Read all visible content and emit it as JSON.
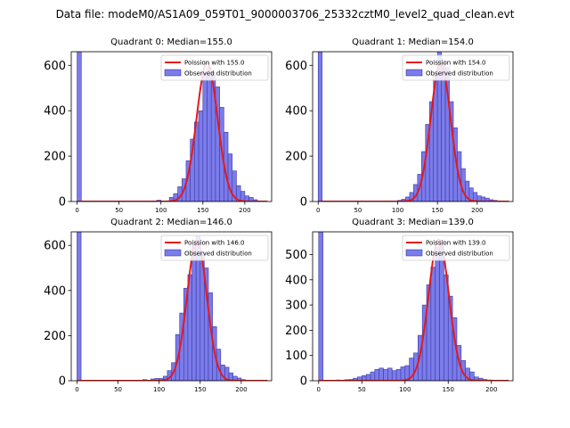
{
  "chart_data": {
    "type": "bar",
    "title": "Data file: modeM0/AS1A09_059T01_9000003706_25332cztM0_level2_quad_clean.evt",
    "colors": {
      "bar_fill": "#7b7bea",
      "bar_edge": "#3a3aa8",
      "poisson_line": "#e41a1c"
    },
    "panels": [
      {
        "title": "Quadrant 0: Median=155.0",
        "xlim": [
          -7,
          232
        ],
        "ylim": [
          0,
          660
        ],
        "xticks": [
          0,
          50,
          100,
          150,
          200
        ],
        "yticks": [
          0,
          200,
          400,
          600
        ],
        "legend": {
          "position": "top-right",
          "line_label": "Poission with 155.0",
          "bar_label": "Observed distribution"
        },
        "poisson_mean": 155.0,
        "poisson_peak": 610,
        "bin_width": 5,
        "bins": [
          0,
          95,
          110,
          115,
          120,
          125,
          130,
          135,
          140,
          145,
          150,
          155,
          160,
          165,
          170,
          175,
          180,
          185,
          190,
          195,
          200,
          205,
          210,
          215
        ],
        "counts": [
          660,
          6,
          18,
          35,
          65,
          100,
          180,
          275,
          350,
          400,
          565,
          590,
          570,
          505,
          415,
          305,
          210,
          135,
          70,
          45,
          25,
          18,
          8,
          3
        ]
      },
      {
        "title": "Quadrant 1: Median=154.0",
        "xlim": [
          -7,
          245
        ],
        "ylim": [
          0,
          660
        ],
        "xticks": [
          0,
          50,
          100,
          150,
          200
        ],
        "yticks": [
          0,
          200,
          400,
          600
        ],
        "legend": {
          "position": "top-right",
          "line_label": "Poission with 154.0",
          "bar_label": "Observed distribution"
        },
        "poisson_mean": 154.0,
        "poisson_peak": 610,
        "bin_width": 5,
        "bins": [
          0,
          100,
          105,
          110,
          115,
          120,
          125,
          130,
          135,
          140,
          145,
          150,
          155,
          160,
          165,
          170,
          175,
          180,
          185,
          190,
          195,
          200,
          205,
          210,
          215,
          220,
          225
        ],
        "counts": [
          660,
          5,
          10,
          20,
          40,
          75,
          120,
          220,
          340,
          440,
          560,
          660,
          610,
          590,
          440,
          325,
          220,
          145,
          90,
          60,
          40,
          25,
          20,
          15,
          8,
          5,
          3
        ]
      },
      {
        "title": "Quadrant 2: Median=146.0",
        "xlim": [
          -7,
          237
        ],
        "ylim": [
          0,
          660
        ],
        "xticks": [
          0,
          50,
          100,
          150,
          200
        ],
        "yticks": [
          0,
          200,
          400,
          600
        ],
        "legend": {
          "position": "top-right",
          "line_label": "Poission with 146.0",
          "bar_label": "Observed distribution"
        },
        "poisson_mean": 146.0,
        "poisson_peak": 620,
        "bin_width": 5,
        "bins": [
          0,
          80,
          90,
          95,
          100,
          105,
          110,
          115,
          120,
          125,
          130,
          135,
          140,
          145,
          150,
          155,
          160,
          165,
          170,
          175,
          180,
          185,
          190,
          195,
          200,
          205
        ],
        "counts": [
          660,
          5,
          8,
          10,
          10,
          20,
          45,
          80,
          205,
          300,
          410,
          470,
          600,
          640,
          570,
          500,
          390,
          240,
          140,
          70,
          60,
          35,
          20,
          12,
          5,
          2
        ]
      },
      {
        "title": "Quadrant 3: Median=139.0",
        "xlim": [
          -7,
          225
        ],
        "ylim": [
          0,
          590
        ],
        "xticks": [
          0,
          50,
          100,
          150,
          200
        ],
        "yticks": [
          0,
          100,
          200,
          300,
          400,
          500
        ],
        "legend": {
          "position": "top-right",
          "line_label": "Poission with 139.0",
          "bar_label": "Observed distribution"
        },
        "poisson_mean": 139.0,
        "poisson_peak": 560,
        "bin_width": 5,
        "bins": [
          0,
          20,
          30,
          35,
          40,
          45,
          50,
          55,
          60,
          65,
          70,
          75,
          80,
          85,
          90,
          95,
          100,
          105,
          110,
          115,
          120,
          125,
          130,
          135,
          140,
          145,
          150,
          155,
          160,
          165,
          170,
          175,
          180,
          185,
          190,
          195,
          200
        ],
        "counts": [
          590,
          3,
          4,
          5,
          10,
          15,
          20,
          25,
          35,
          45,
          50,
          45,
          50,
          40,
          45,
          55,
          60,
          90,
          110,
          180,
          300,
          380,
          450,
          530,
          555,
          420,
          335,
          250,
          140,
          80,
          50,
          35,
          15,
          10,
          5,
          3,
          2
        ]
      }
    ]
  }
}
